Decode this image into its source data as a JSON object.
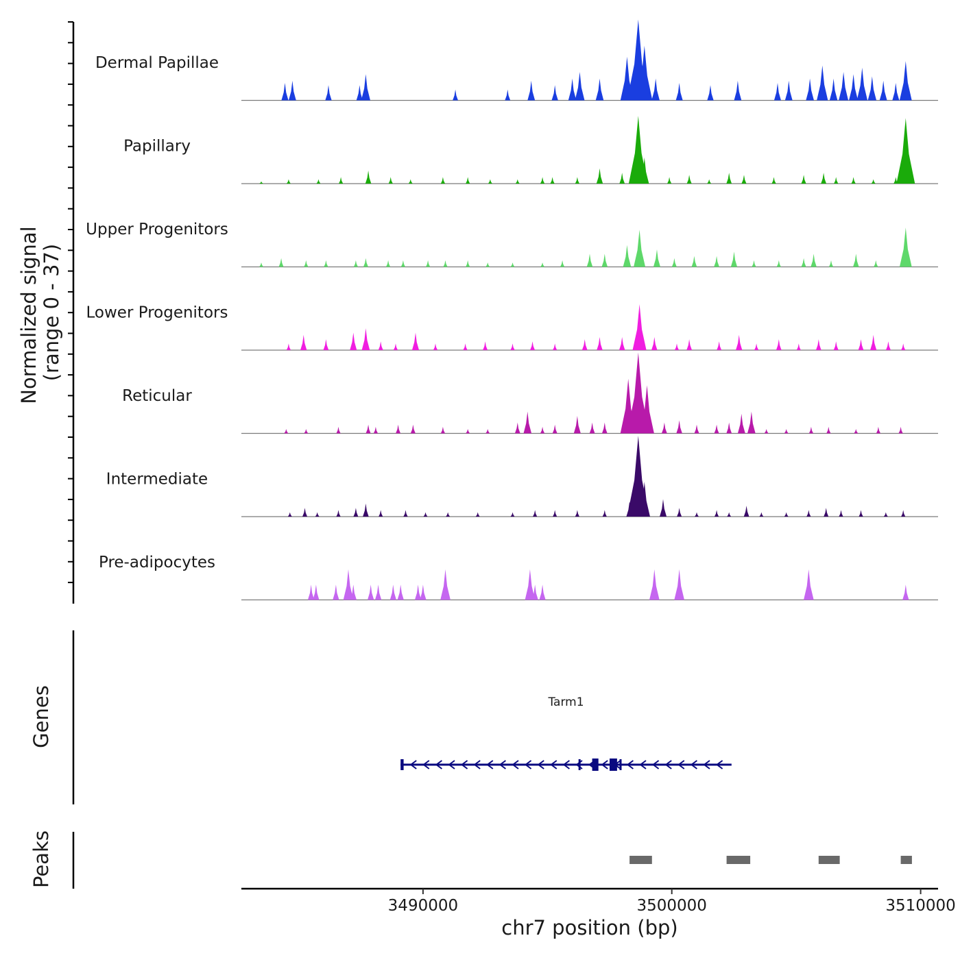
{
  "chart_data": {
    "type": "area",
    "title": "",
    "xlabel": "chr7 position (bp)",
    "ylabel": "Normalized signal",
    "ylabel_range": "(range 0 - 37)",
    "ylim": [
      0,
      37
    ],
    "xlim": [
      3482700,
      3510700
    ],
    "x_ticks": [
      3490000,
      3500000,
      3510000
    ],
    "x_tick_labels": [
      "3490000",
      "3500000",
      "3510000"
    ],
    "tracks": [
      {
        "name": "Dermal Papillae",
        "color": "#1a3ee0",
        "peaks": [
          [
            3484450,
            8
          ],
          [
            3484750,
            9
          ],
          [
            3486200,
            7
          ],
          [
            3487450,
            7
          ],
          [
            3487700,
            12
          ],
          [
            3491300,
            5
          ],
          [
            3493400,
            5
          ],
          [
            3494350,
            9
          ],
          [
            3495300,
            7
          ],
          [
            3496000,
            10
          ],
          [
            3496300,
            13
          ],
          [
            3497100,
            10
          ],
          [
            3498200,
            20
          ],
          [
            3498650,
            37
          ],
          [
            3498900,
            25
          ],
          [
            3499350,
            10
          ],
          [
            3500300,
            8
          ],
          [
            3501550,
            7
          ],
          [
            3502650,
            9
          ],
          [
            3504250,
            8
          ],
          [
            3504700,
            9
          ],
          [
            3505550,
            10
          ],
          [
            3506050,
            16
          ],
          [
            3506500,
            10
          ],
          [
            3506900,
            13
          ],
          [
            3507300,
            12
          ],
          [
            3507650,
            15
          ],
          [
            3508050,
            11
          ],
          [
            3508500,
            9
          ],
          [
            3509000,
            8
          ],
          [
            3509400,
            18
          ]
        ]
      },
      {
        "name": "Papillary",
        "color": "#1aab0a",
        "peaks": [
          [
            3483500,
            1
          ],
          [
            3484600,
            2
          ],
          [
            3485800,
            2
          ],
          [
            3486700,
            3
          ],
          [
            3487800,
            6
          ],
          [
            3488700,
            3
          ],
          [
            3489500,
            2
          ],
          [
            3490800,
            3
          ],
          [
            3491800,
            3
          ],
          [
            3492700,
            2
          ],
          [
            3493800,
            2
          ],
          [
            3494800,
            3
          ],
          [
            3495200,
            3
          ],
          [
            3496200,
            3
          ],
          [
            3497100,
            7
          ],
          [
            3498000,
            5
          ],
          [
            3498650,
            31
          ],
          [
            3498900,
            12
          ],
          [
            3499900,
            3
          ],
          [
            3500700,
            4
          ],
          [
            3501500,
            2
          ],
          [
            3502300,
            5
          ],
          [
            3502900,
            4
          ],
          [
            3504100,
            3
          ],
          [
            3505300,
            4
          ],
          [
            3506100,
            5
          ],
          [
            3506600,
            3
          ],
          [
            3507300,
            3
          ],
          [
            3508100,
            2
          ],
          [
            3509000,
            3
          ],
          [
            3509400,
            30
          ]
        ]
      },
      {
        "name": "Upper Progenitors",
        "color": "#5ed86a",
        "peaks": [
          [
            3483500,
            2
          ],
          [
            3484300,
            4
          ],
          [
            3485300,
            3
          ],
          [
            3486100,
            3
          ],
          [
            3487300,
            3
          ],
          [
            3487700,
            4
          ],
          [
            3488600,
            3
          ],
          [
            3489200,
            3
          ],
          [
            3490200,
            3
          ],
          [
            3490900,
            3
          ],
          [
            3491800,
            3
          ],
          [
            3492600,
            2
          ],
          [
            3493600,
            2
          ],
          [
            3494800,
            2
          ],
          [
            3495600,
            3
          ],
          [
            3496700,
            6
          ],
          [
            3497300,
            6
          ],
          [
            3498200,
            10
          ],
          [
            3498700,
            17
          ],
          [
            3499400,
            8
          ],
          [
            3500100,
            4
          ],
          [
            3500900,
            5
          ],
          [
            3501800,
            5
          ],
          [
            3502500,
            7
          ],
          [
            3503300,
            3
          ],
          [
            3504300,
            3
          ],
          [
            3505300,
            4
          ],
          [
            3505700,
            6
          ],
          [
            3506400,
            3
          ],
          [
            3507400,
            6
          ],
          [
            3508200,
            3
          ],
          [
            3509400,
            18
          ]
        ]
      },
      {
        "name": "Lower Progenitors",
        "color": "#f01ee0",
        "peaks": [
          [
            3484600,
            3
          ],
          [
            3485200,
            7
          ],
          [
            3486100,
            5
          ],
          [
            3487200,
            8
          ],
          [
            3487700,
            10
          ],
          [
            3488300,
            4
          ],
          [
            3488900,
            3
          ],
          [
            3489700,
            8
          ],
          [
            3490500,
            3
          ],
          [
            3491700,
            3
          ],
          [
            3492500,
            4
          ],
          [
            3493600,
            3
          ],
          [
            3494400,
            4
          ],
          [
            3495300,
            3
          ],
          [
            3496500,
            5
          ],
          [
            3497100,
            6
          ],
          [
            3498000,
            6
          ],
          [
            3498700,
            21
          ],
          [
            3499300,
            6
          ],
          [
            3500200,
            3
          ],
          [
            3500700,
            5
          ],
          [
            3501900,
            4
          ],
          [
            3502700,
            7
          ],
          [
            3503400,
            3
          ],
          [
            3504300,
            5
          ],
          [
            3505100,
            3
          ],
          [
            3505900,
            5
          ],
          [
            3506600,
            4
          ],
          [
            3507600,
            5
          ],
          [
            3508100,
            7
          ],
          [
            3508700,
            4
          ],
          [
            3509300,
            3
          ]
        ]
      },
      {
        "name": "Reticular",
        "color": "#b81aaa",
        "peaks": [
          [
            3484500,
            2
          ],
          [
            3485300,
            2
          ],
          [
            3486600,
            3
          ],
          [
            3487800,
            4
          ],
          [
            3488100,
            3
          ],
          [
            3489000,
            4
          ],
          [
            3489600,
            4
          ],
          [
            3490800,
            3
          ],
          [
            3491800,
            2
          ],
          [
            3492600,
            2
          ],
          [
            3493800,
            5
          ],
          [
            3494200,
            10
          ],
          [
            3494800,
            3
          ],
          [
            3495300,
            4
          ],
          [
            3496200,
            8
          ],
          [
            3496800,
            5
          ],
          [
            3497300,
            5
          ],
          [
            3498250,
            25
          ],
          [
            3498650,
            37
          ],
          [
            3499000,
            22
          ],
          [
            3499700,
            5
          ],
          [
            3500300,
            6
          ],
          [
            3501000,
            4
          ],
          [
            3501800,
            4
          ],
          [
            3502300,
            5
          ],
          [
            3502800,
            9
          ],
          [
            3503200,
            10
          ],
          [
            3503800,
            2
          ],
          [
            3504600,
            2
          ],
          [
            3505600,
            3
          ],
          [
            3506300,
            3
          ],
          [
            3507400,
            2
          ],
          [
            3508300,
            3
          ],
          [
            3509200,
            3
          ]
        ]
      },
      {
        "name": "Intermediate",
        "color": "#3a0a68",
        "peaks": [
          [
            3484650,
            2
          ],
          [
            3485250,
            4
          ],
          [
            3485750,
            2
          ],
          [
            3486600,
            3
          ],
          [
            3487300,
            4
          ],
          [
            3487700,
            6
          ],
          [
            3488300,
            3
          ],
          [
            3489300,
            3
          ],
          [
            3490100,
            2
          ],
          [
            3491000,
            2
          ],
          [
            3492200,
            2
          ],
          [
            3493600,
            2
          ],
          [
            3494500,
            3
          ],
          [
            3495300,
            3
          ],
          [
            3496200,
            3
          ],
          [
            3497300,
            3
          ],
          [
            3498300,
            7
          ],
          [
            3498650,
            37
          ],
          [
            3498900,
            16
          ],
          [
            3499650,
            8
          ],
          [
            3500300,
            4
          ],
          [
            3501000,
            2
          ],
          [
            3501800,
            3
          ],
          [
            3502300,
            2
          ],
          [
            3503000,
            5
          ],
          [
            3503600,
            2
          ],
          [
            3504600,
            2
          ],
          [
            3505500,
            3
          ],
          [
            3506200,
            4
          ],
          [
            3506800,
            3
          ],
          [
            3507600,
            3
          ],
          [
            3508600,
            2
          ],
          [
            3509300,
            3
          ]
        ]
      },
      {
        "name": "Pre-adipocytes",
        "color": "#c566f0",
        "peaks": [
          [
            3485500,
            7
          ],
          [
            3485700,
            7
          ],
          [
            3486500,
            7
          ],
          [
            3487000,
            14
          ],
          [
            3487200,
            7
          ],
          [
            3487900,
            7
          ],
          [
            3488200,
            7
          ],
          [
            3488800,
            7
          ],
          [
            3489100,
            7
          ],
          [
            3489800,
            7
          ],
          [
            3490000,
            7
          ],
          [
            3490900,
            14
          ],
          [
            3494300,
            14
          ],
          [
            3494500,
            7
          ],
          [
            3494800,
            7
          ],
          [
            3499300,
            14
          ],
          [
            3500300,
            14
          ],
          [
            3505500,
            14
          ],
          [
            3509400,
            7
          ]
        ]
      }
    ],
    "genes": {
      "label": "Genes",
      "gene_name": "Tarm1",
      "gene_color": "#0a0a80",
      "strand": "-",
      "start": 3489100,
      "end": 3502400,
      "exons": [
        [
          3489100,
          3489220
        ],
        [
          3496250,
          3496300
        ],
        [
          3496800,
          3497050
        ],
        [
          3497500,
          3497800
        ],
        [
          3497900,
          3497950
        ]
      ]
    },
    "peaks_track": {
      "label": "Peaks",
      "color": "#696969",
      "regions": [
        [
          3498300,
          3499200
        ],
        [
          3502200,
          3503150
        ],
        [
          3505900,
          3506750
        ],
        [
          3509200,
          3509650
        ]
      ]
    }
  }
}
